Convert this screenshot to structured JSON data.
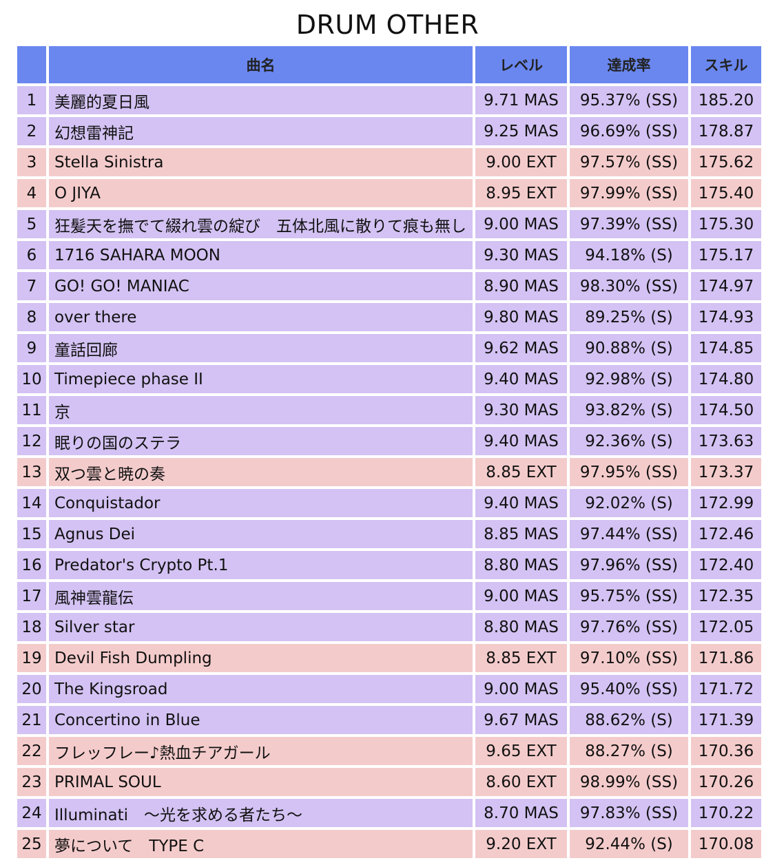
{
  "title": "DRUM OTHER",
  "headers": {
    "num": "",
    "name": "曲名",
    "level": "レベル",
    "rate": "達成率",
    "skill": "スキル"
  },
  "colors": {
    "header": "#6a87ef",
    "MAS": "#d3c2f3",
    "EXT": "#f4cbcb"
  },
  "rows": [
    {
      "rank": "1",
      "name": "美麗的夏日風",
      "level": "9.71 MAS",
      "rate": "95.37% (SS)",
      "skill": "185.20",
      "difficulty": "MAS"
    },
    {
      "rank": "2",
      "name": "幻想雷神記",
      "level": "9.25 MAS",
      "rate": "96.69% (SS)",
      "skill": "178.87",
      "difficulty": "MAS"
    },
    {
      "rank": "3",
      "name": "Stella Sinistra",
      "level": "9.00 EXT",
      "rate": "97.57% (SS)",
      "skill": "175.62",
      "difficulty": "EXT"
    },
    {
      "rank": "4",
      "name": "O JIYA",
      "level": "8.95 EXT",
      "rate": "97.99% (SS)",
      "skill": "175.40",
      "difficulty": "EXT"
    },
    {
      "rank": "5",
      "name": "狂髪天を撫でて綴れ雲の綻び　五体北風に散りて痕も無し",
      "level": "9.00 MAS",
      "rate": "97.39% (SS)",
      "skill": "175.30",
      "difficulty": "MAS"
    },
    {
      "rank": "6",
      "name": "1716 SAHARA MOON",
      "level": "9.30 MAS",
      "rate": "94.18% (S)",
      "skill": "175.17",
      "difficulty": "MAS"
    },
    {
      "rank": "7",
      "name": "GO! GO! MANIAC",
      "level": "8.90 MAS",
      "rate": "98.30% (SS)",
      "skill": "174.97",
      "difficulty": "MAS"
    },
    {
      "rank": "8",
      "name": "over there",
      "level": "9.80 MAS",
      "rate": "89.25% (S)",
      "skill": "174.93",
      "difficulty": "MAS"
    },
    {
      "rank": "9",
      "name": "童話回廊",
      "level": "9.62 MAS",
      "rate": "90.88% (S)",
      "skill": "174.85",
      "difficulty": "MAS"
    },
    {
      "rank": "10",
      "name": "Timepiece phase II",
      "level": "9.40 MAS",
      "rate": "92.98% (S)",
      "skill": "174.80",
      "difficulty": "MAS"
    },
    {
      "rank": "11",
      "name": "京",
      "level": "9.30 MAS",
      "rate": "93.82% (S)",
      "skill": "174.50",
      "difficulty": "MAS"
    },
    {
      "rank": "12",
      "name": "眠りの国のステラ",
      "level": "9.40 MAS",
      "rate": "92.36% (S)",
      "skill": "173.63",
      "difficulty": "MAS"
    },
    {
      "rank": "13",
      "name": "双つ雲と暁の奏",
      "level": "8.85 EXT",
      "rate": "97.95% (SS)",
      "skill": "173.37",
      "difficulty": "EXT"
    },
    {
      "rank": "14",
      "name": "Conquistador",
      "level": "9.40 MAS",
      "rate": "92.02% (S)",
      "skill": "172.99",
      "difficulty": "MAS"
    },
    {
      "rank": "15",
      "name": "Agnus Dei",
      "level": "8.85 MAS",
      "rate": "97.44% (SS)",
      "skill": "172.46",
      "difficulty": "MAS"
    },
    {
      "rank": "16",
      "name": "Predator's Crypto Pt.1",
      "level": "8.80 MAS",
      "rate": "97.96% (SS)",
      "skill": "172.40",
      "difficulty": "MAS"
    },
    {
      "rank": "17",
      "name": "風神雲龍伝",
      "level": "9.00 MAS",
      "rate": "95.75% (SS)",
      "skill": "172.35",
      "difficulty": "MAS"
    },
    {
      "rank": "18",
      "name": "Silver star",
      "level": "8.80 MAS",
      "rate": "97.76% (SS)",
      "skill": "172.05",
      "difficulty": "MAS"
    },
    {
      "rank": "19",
      "name": "Devil Fish Dumpling",
      "level": "8.85 EXT",
      "rate": "97.10% (SS)",
      "skill": "171.86",
      "difficulty": "EXT"
    },
    {
      "rank": "20",
      "name": "The Kingsroad",
      "level": "9.00 MAS",
      "rate": "95.40% (SS)",
      "skill": "171.72",
      "difficulty": "MAS"
    },
    {
      "rank": "21",
      "name": "Concertino in Blue",
      "level": "9.67 MAS",
      "rate": "88.62% (S)",
      "skill": "171.39",
      "difficulty": "MAS"
    },
    {
      "rank": "22",
      "name": "フレッフレー♪熱血チアガール",
      "level": "9.65 EXT",
      "rate": "88.27% (S)",
      "skill": "170.36",
      "difficulty": "EXT"
    },
    {
      "rank": "23",
      "name": "PRIMAL SOUL",
      "level": "8.60 EXT",
      "rate": "98.99% (SS)",
      "skill": "170.26",
      "difficulty": "EXT"
    },
    {
      "rank": "24",
      "name": "Illuminati　～光を求める者たち～",
      "level": "8.70 MAS",
      "rate": "97.83% (SS)",
      "skill": "170.22",
      "difficulty": "MAS"
    },
    {
      "rank": "25",
      "name": "夢について　TYPE C",
      "level": "9.20 EXT",
      "rate": "92.44% (S)",
      "skill": "170.08",
      "difficulty": "EXT"
    }
  ]
}
